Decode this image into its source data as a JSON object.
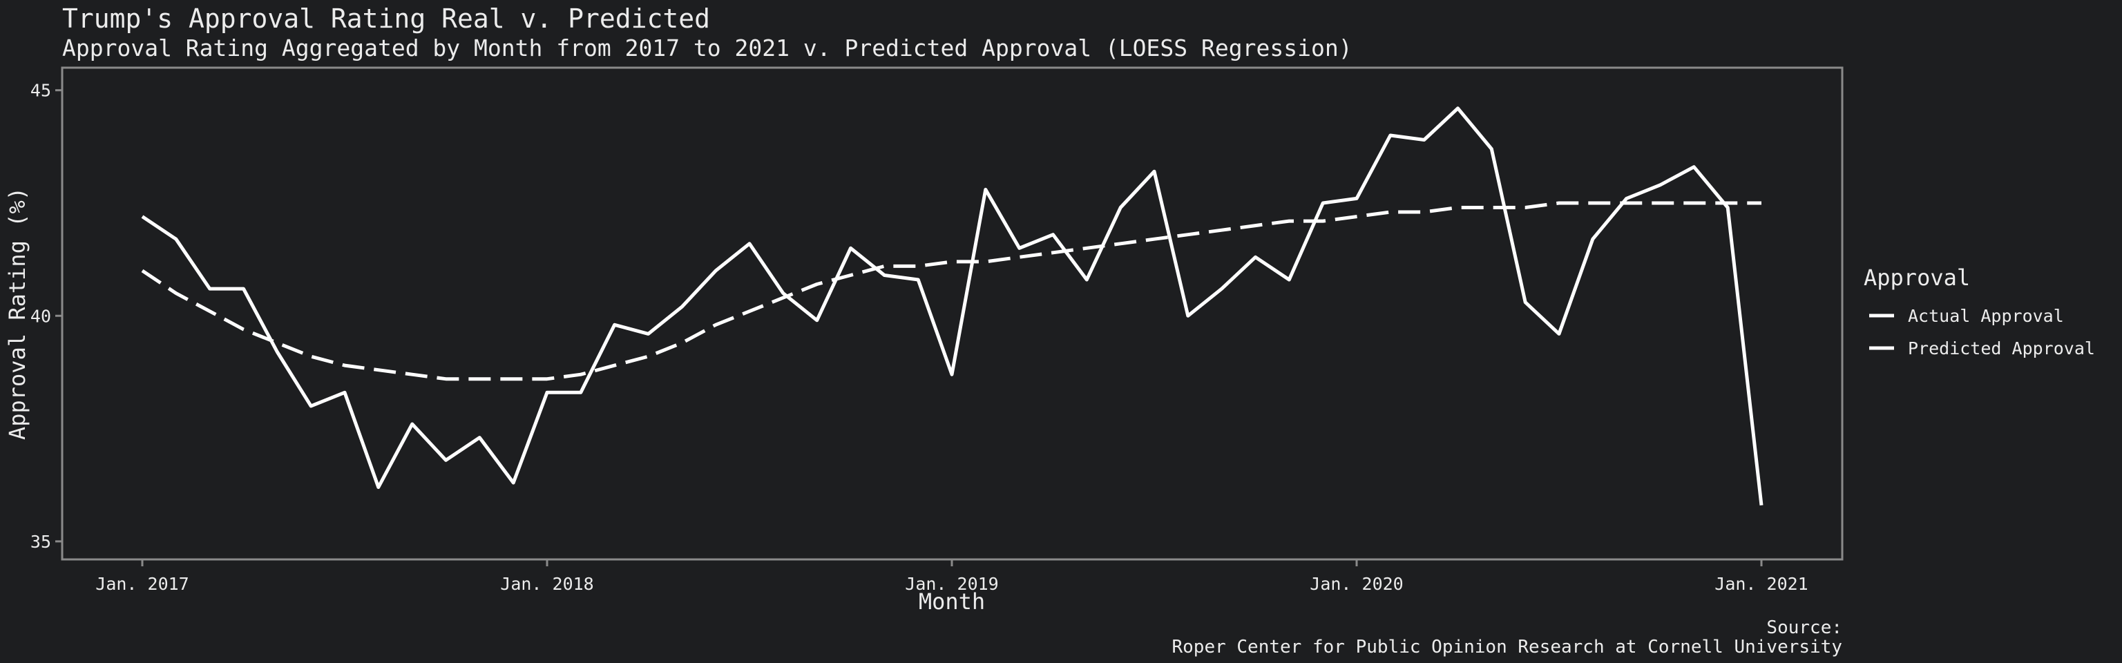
{
  "chart_data": {
    "type": "line",
    "title": "Trump's Approval Rating Real v. Predicted",
    "subtitle": "Approval Rating Aggregated by Month from 2017 to 2021 v. Predicted Approval (LOESS Regression)",
    "xlabel": "Month",
    "ylabel": "Approval Rating (%)",
    "x_ticks": [
      {
        "label": "Jan. 2017",
        "month": 0
      },
      {
        "label": "Jan. 2018",
        "month": 12
      },
      {
        "label": "Jan. 2019",
        "month": 24
      },
      {
        "label": "Jan. 2020",
        "month": 36
      },
      {
        "label": "Jan. 2021",
        "month": 48
      }
    ],
    "y_ticks": [
      35,
      40,
      45
    ],
    "xlim": [
      "Nov. 2016",
      "Mar. 2021"
    ],
    "ylim": [
      34.6,
      45.5
    ],
    "grid": false,
    "legend": {
      "title": "Approval",
      "position": "right"
    },
    "line_color": "#ffffff",
    "background_color": "#1d1e20",
    "panel_border_color": "#8a8a8a",
    "x": [
      "Jan. 2017",
      "Feb. 2017",
      "Mar. 2017",
      "Apr. 2017",
      "May 2017",
      "Jun. 2017",
      "Jul. 2017",
      "Aug. 2017",
      "Sep. 2017",
      "Oct. 2017",
      "Nov. 2017",
      "Dec. 2017",
      "Jan. 2018",
      "Feb. 2018",
      "Mar. 2018",
      "Apr. 2018",
      "May 2018",
      "Jun. 2018",
      "Jul. 2018",
      "Aug. 2018",
      "Sep. 2018",
      "Oct. 2018",
      "Nov. 2018",
      "Dec. 2018",
      "Jan. 2019",
      "Feb. 2019",
      "Mar. 2019",
      "Apr. 2019",
      "May 2019",
      "Jun. 2019",
      "Jul. 2019",
      "Aug. 2019",
      "Sep. 2019",
      "Oct. 2019",
      "Nov. 2019",
      "Dec. 2019",
      "Jan. 2020",
      "Feb. 2020",
      "Mar. 2020",
      "Apr. 2020",
      "May 2020",
      "Jun. 2020",
      "Jul. 2020",
      "Aug. 2020",
      "Sep. 2020",
      "Oct. 2020",
      "Nov. 2020",
      "Dec. 2020",
      "Jan. 2021"
    ],
    "series": [
      {
        "name": "Actual Approval",
        "style": "solid",
        "values": [
          42.2,
          41.7,
          40.6,
          40.6,
          39.2,
          38.0,
          38.3,
          36.2,
          37.6,
          36.8,
          37.3,
          36.3,
          38.3,
          38.3,
          39.8,
          39.6,
          40.2,
          41.0,
          41.6,
          40.5,
          39.9,
          41.5,
          40.9,
          40.8,
          38.7,
          42.8,
          41.5,
          41.8,
          40.8,
          42.4,
          43.2,
          40.0,
          40.6,
          41.3,
          40.8,
          42.5,
          42.6,
          44.0,
          43.9,
          44.6,
          43.7,
          40.3,
          39.6,
          41.7,
          42.6,
          42.9,
          43.3,
          42.4,
          35.8
        ]
      },
      {
        "name": "Predicted Approval",
        "style": "dashed",
        "values": [
          41.0,
          40.5,
          40.1,
          39.7,
          39.4,
          39.1,
          38.9,
          38.8,
          38.7,
          38.6,
          38.6,
          38.6,
          38.6,
          38.7,
          38.9,
          39.1,
          39.4,
          39.8,
          40.1,
          40.4,
          40.7,
          40.9,
          41.1,
          41.1,
          41.2,
          41.2,
          41.3,
          41.4,
          41.5,
          41.6,
          41.7,
          41.8,
          41.9,
          42.0,
          42.1,
          42.1,
          42.2,
          42.3,
          42.3,
          42.4,
          42.4,
          42.4,
          42.5,
          42.5,
          42.5,
          42.5,
          42.5,
          42.5,
          42.5
        ]
      }
    ],
    "caption_line1": "Source:",
    "caption_line2": "Roper Center for Public Opinion Research at Cornell University"
  }
}
